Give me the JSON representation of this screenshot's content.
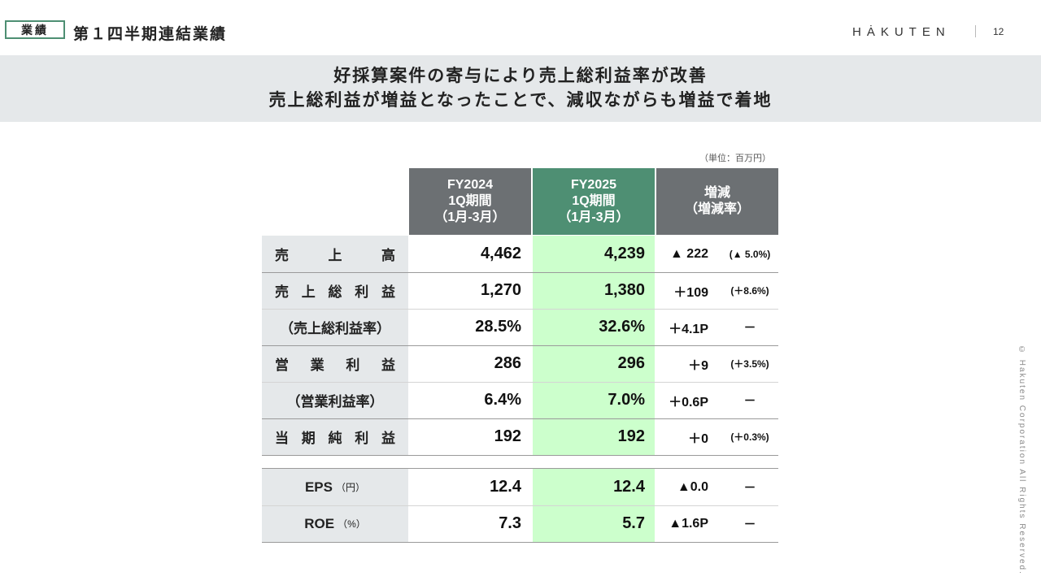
{
  "header": {
    "tag": "業績",
    "title": "第１四半期連結業績",
    "logo": "HȦKUTEN",
    "page_number": "12"
  },
  "banner": {
    "line1": "好採算案件の寄与により売上総利益率が改善",
    "line2": "売上総利益が増益となったことで、減収ながらも増益で着地"
  },
  "unit": "（単位：百万円）",
  "columns": {
    "fy2024": [
      "FY2024",
      "1Q期間",
      "（1月-3月）"
    ],
    "fy2025": [
      "FY2025",
      "1Q期間",
      "（1月-3月）"
    ],
    "diff": [
      "増減",
      "（増減率）"
    ]
  },
  "rows": [
    {
      "label": [
        "売",
        "上",
        "高"
      ],
      "fy2024": "4,462",
      "fy2025": "4,239",
      "diff": "▲ 222",
      "rate": "(▲ 5.0%)"
    },
    {
      "label": [
        "売",
        "上",
        "総",
        "利",
        "益"
      ],
      "fy2024": "1,270",
      "fy2025": "1,380",
      "diff": "＋109",
      "rate": "(＋8.6%)"
    },
    {
      "label_text": "（売上総利益率）",
      "fy2024": "28.5%",
      "fy2025": "32.6%",
      "diff": "＋4.1P",
      "rate": "－"
    },
    {
      "label": [
        "営",
        "業",
        "利",
        "益"
      ],
      "fy2024": "286",
      "fy2025": "296",
      "diff": "＋9",
      "rate": "(＋3.5%)"
    },
    {
      "label_text": "（営業利益率）",
      "fy2024": "6.4%",
      "fy2025": "7.0%",
      "diff": "＋0.6P",
      "rate": "－"
    },
    {
      "label": [
        "当",
        "期",
        "純",
        "利",
        "益"
      ],
      "fy2024": "192",
      "fy2025": "192",
      "diff": "＋0",
      "rate": "(＋0.3%)"
    }
  ],
  "extra_rows": [
    {
      "label": "EPS",
      "unit": "（円）",
      "fy2024": "12.4",
      "fy2025": "12.4",
      "diff": "▲0.0",
      "rate": "－"
    },
    {
      "label": "ROE",
      "unit": "（%）",
      "fy2024": "7.3",
      "fy2025": "5.7",
      "diff": "▲1.6P",
      "rate": "－"
    }
  ],
  "copyright": "© Hakuten Corporation All Rights Reserved."
}
